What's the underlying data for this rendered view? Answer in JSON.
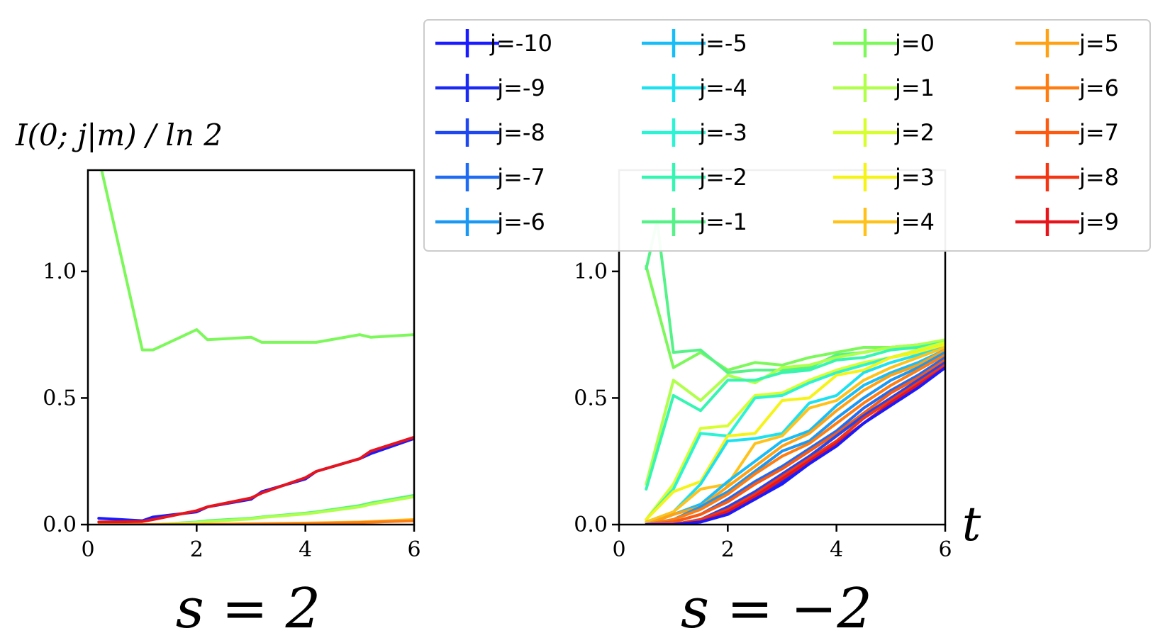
{
  "chart_data": [
    {
      "type": "line",
      "title": "s = 2",
      "ylabel": "I(0; j|m) / ln 2",
      "xlabel": "",
      "xlim": [
        0,
        6
      ],
      "ylim": [
        0,
        1.4
      ],
      "xticks": [
        "0",
        "2",
        "4",
        "6"
      ],
      "yticks": [
        "0.0",
        "0.5",
        "1.0"
      ],
      "series": [
        {
          "name": "j=0",
          "color": "#7cf85a",
          "x": [
            0.2,
            1.0,
            1.2,
            2.0,
            2.2,
            3.0,
            3.2,
            4.0,
            4.2,
            5.0,
            5.2,
            6.0
          ],
          "y": [
            1.45,
            0.69,
            0.69,
            0.77,
            0.73,
            0.74,
            0.72,
            0.72,
            0.72,
            0.75,
            0.74,
            0.75
          ]
        },
        {
          "name": "j=-1",
          "color": "#55f287",
          "x": [
            0.2,
            1.0,
            1.2,
            2.0,
            2.2,
            3.0,
            3.2,
            4.0,
            4.2,
            5.0,
            5.2,
            6.0
          ],
          "y": [
            0.0,
            0.0,
            0.0,
            0.01,
            0.015,
            0.025,
            0.03,
            0.045,
            0.05,
            0.075,
            0.085,
            0.115
          ]
        },
        {
          "name": "j=1",
          "color": "#b0ff4a",
          "x": [
            0.2,
            1.0,
            1.2,
            2.0,
            2.2,
            3.0,
            3.2,
            4.0,
            4.2,
            5.0,
            5.2,
            6.0
          ],
          "y": [
            0.0,
            0.0,
            0.0,
            0.008,
            0.012,
            0.022,
            0.028,
            0.042,
            0.047,
            0.07,
            0.08,
            0.11
          ]
        },
        {
          "name": "j=-10",
          "color": "#1a1aff",
          "x": [
            0.2,
            1.0,
            1.2,
            2.0,
            2.2,
            3.0,
            3.2,
            4.0,
            4.2,
            5.0,
            5.2,
            6.0
          ],
          "y": [
            0.025,
            0.015,
            0.03,
            0.05,
            0.07,
            0.1,
            0.13,
            0.18,
            0.21,
            0.26,
            0.28,
            0.34
          ]
        },
        {
          "name": "j=9",
          "color": "#e8141b",
          "x": [
            0.2,
            1.0,
            1.2,
            2.0,
            2.2,
            3.0,
            3.2,
            4.0,
            4.2,
            5.0,
            5.2,
            6.0
          ],
          "y": [
            0.01,
            0.012,
            0.02,
            0.055,
            0.07,
            0.105,
            0.125,
            0.185,
            0.21,
            0.26,
            0.29,
            0.345
          ]
        },
        {
          "name": "j=4",
          "color": "#ffc21a",
          "x": [
            0.2,
            1.0,
            2.0,
            3.0,
            4.0,
            5.0,
            6.0
          ],
          "y": [
            0.0,
            0.0,
            0.0,
            0.003,
            0.006,
            0.01,
            0.02
          ]
        },
        {
          "name": "j=6",
          "color": "#ff7c10",
          "x": [
            0.2,
            1.0,
            2.0,
            3.0,
            4.0,
            5.0,
            6.0
          ],
          "y": [
            0.0,
            0.0,
            0.0,
            0.002,
            0.004,
            0.008,
            0.015
          ]
        }
      ]
    },
    {
      "type": "line",
      "title": "s = −2",
      "xlabel": "t",
      "ylabel": "",
      "xlim": [
        0,
        6
      ],
      "ylim": [
        0,
        1.4
      ],
      "xticks": [
        "0",
        "2",
        "4",
        "6"
      ],
      "yticks": [
        "0.0",
        "0.5",
        "1.0"
      ],
      "series": [
        {
          "name": "j=0",
          "color": "#7cf85a",
          "x": [
            0.5,
            1.0,
            1.5,
            2.0,
            2.5,
            3.0,
            3.5,
            4.0,
            4.5,
            5.0,
            5.5,
            6.0
          ],
          "y": [
            1.02,
            0.62,
            0.68,
            0.61,
            0.64,
            0.63,
            0.66,
            0.68,
            0.7,
            0.7,
            0.71,
            0.72
          ]
        },
        {
          "name": "j=-1",
          "color": "#55f287",
          "x": [
            0.5,
            0.7,
            1.0,
            1.5,
            2.0,
            2.5,
            3.0,
            3.5,
            4.0,
            4.5,
            5.0,
            5.5,
            6.0
          ],
          "y": [
            1.01,
            1.2,
            0.68,
            0.69,
            0.6,
            0.61,
            0.61,
            0.62,
            0.67,
            0.68,
            0.7,
            0.71,
            0.72
          ]
        },
        {
          "name": "j=1",
          "color": "#b0ff4a",
          "x": [
            0.5,
            1.0,
            1.5,
            2.0,
            2.5,
            3.0,
            3.5,
            4.0,
            4.5,
            5.0,
            5.5,
            6.0
          ],
          "y": [
            0.16,
            0.57,
            0.49,
            0.59,
            0.56,
            0.62,
            0.63,
            0.66,
            0.68,
            0.7,
            0.71,
            0.73
          ]
        },
        {
          "name": "j=-2",
          "color": "#35f5b2",
          "x": [
            0.5,
            1.0,
            1.5,
            2.0,
            2.5,
            3.0,
            3.5,
            4.0,
            4.5,
            5.0,
            5.5,
            6.0
          ],
          "y": [
            0.14,
            0.51,
            0.45,
            0.57,
            0.57,
            0.6,
            0.61,
            0.65,
            0.66,
            0.69,
            0.7,
            0.72
          ]
        },
        {
          "name": "j=2",
          "color": "#d7ff2e",
          "x": [
            0.5,
            1.0,
            1.5,
            2.0,
            2.5,
            3.0,
            3.5,
            4.0,
            4.5,
            5.0,
            5.5,
            6.0
          ],
          "y": [
            0.02,
            0.16,
            0.38,
            0.39,
            0.51,
            0.52,
            0.57,
            0.61,
            0.64,
            0.66,
            0.69,
            0.72
          ]
        },
        {
          "name": "j=-3",
          "color": "#2cf3d4",
          "x": [
            0.5,
            1.0,
            1.5,
            2.0,
            2.5,
            3.0,
            3.5,
            4.0,
            4.5,
            5.0,
            5.5,
            6.0
          ],
          "y": [
            0.02,
            0.14,
            0.36,
            0.35,
            0.5,
            0.51,
            0.56,
            0.6,
            0.63,
            0.66,
            0.68,
            0.71
          ]
        },
        {
          "name": "j=3",
          "color": "#f6f316",
          "x": [
            0.5,
            1.0,
            1.5,
            2.0,
            2.5,
            3.0,
            3.5,
            4.0,
            4.5,
            5.0,
            5.5,
            6.0
          ],
          "y": [
            0.02,
            0.13,
            0.17,
            0.35,
            0.36,
            0.49,
            0.5,
            0.59,
            0.61,
            0.66,
            0.68,
            0.71
          ]
        },
        {
          "name": "j=-4",
          "color": "#1ee1f0",
          "x": [
            0.5,
            1.0,
            1.5,
            2.0,
            2.5,
            3.0,
            3.5,
            4.0,
            4.5,
            5.0,
            5.5,
            6.0
          ],
          "y": [
            0.01,
            0.05,
            0.16,
            0.33,
            0.34,
            0.36,
            0.48,
            0.51,
            0.6,
            0.64,
            0.67,
            0.7
          ]
        },
        {
          "name": "j=4",
          "color": "#ffc21a",
          "x": [
            0.5,
            1.0,
            1.5,
            2.0,
            2.5,
            3.0,
            3.5,
            4.0,
            4.5,
            5.0,
            5.5,
            6.0
          ],
          "y": [
            0.01,
            0.05,
            0.14,
            0.16,
            0.32,
            0.35,
            0.46,
            0.49,
            0.57,
            0.62,
            0.66,
            0.7
          ]
        },
        {
          "name": "j=-5",
          "color": "#18bdf7",
          "x": [
            0.5,
            1.0,
            1.5,
            2.0,
            2.5,
            3.0,
            3.5,
            4.0,
            4.5,
            5.0,
            5.5,
            6.0
          ],
          "y": [
            0.0,
            0.04,
            0.08,
            0.17,
            0.25,
            0.33,
            0.37,
            0.47,
            0.55,
            0.6,
            0.64,
            0.69
          ]
        },
        {
          "name": "j=5",
          "color": "#ffa114",
          "x": [
            0.5,
            1.0,
            1.5,
            2.0,
            2.5,
            3.0,
            3.5,
            4.0,
            4.5,
            5.0,
            5.5,
            6.0
          ],
          "y": [
            0.0,
            0.04,
            0.07,
            0.15,
            0.23,
            0.31,
            0.36,
            0.45,
            0.53,
            0.59,
            0.63,
            0.69
          ]
        },
        {
          "name": "j=-6",
          "color": "#1a98f4",
          "x": [
            0.5,
            1.0,
            1.5,
            2.0,
            2.5,
            3.0,
            3.5,
            4.0,
            4.5,
            5.0,
            5.5,
            6.0
          ],
          "y": [
            0.0,
            0.02,
            0.07,
            0.13,
            0.21,
            0.29,
            0.33,
            0.42,
            0.5,
            0.57,
            0.62,
            0.68
          ]
        },
        {
          "name": "j=6",
          "color": "#ff7c10",
          "x": [
            0.5,
            1.0,
            1.5,
            2.0,
            2.5,
            3.0,
            3.5,
            4.0,
            4.5,
            5.0,
            5.5,
            6.0
          ],
          "y": [
            0.0,
            0.02,
            0.06,
            0.12,
            0.2,
            0.27,
            0.32,
            0.4,
            0.48,
            0.55,
            0.61,
            0.67
          ]
        },
        {
          "name": "j=-7",
          "color": "#1f6cf2",
          "x": [
            0.5,
            1.0,
            1.5,
            2.0,
            2.5,
            3.0,
            3.5,
            4.0,
            4.5,
            5.0,
            5.5,
            6.0
          ],
          "y": [
            0.0,
            0.01,
            0.04,
            0.1,
            0.17,
            0.23,
            0.3,
            0.37,
            0.46,
            0.53,
            0.59,
            0.66
          ]
        },
        {
          "name": "j=7",
          "color": "#fb5a10",
          "x": [
            0.5,
            1.0,
            1.5,
            2.0,
            2.5,
            3.0,
            3.5,
            4.0,
            4.5,
            5.0,
            5.5,
            6.0
          ],
          "y": [
            0.0,
            0.01,
            0.04,
            0.09,
            0.16,
            0.22,
            0.29,
            0.36,
            0.44,
            0.52,
            0.58,
            0.65
          ]
        },
        {
          "name": "j=-8",
          "color": "#1f47f0",
          "x": [
            0.5,
            1.0,
            1.5,
            2.0,
            2.5,
            3.0,
            3.5,
            4.0,
            4.5,
            5.0,
            5.5,
            6.0
          ],
          "y": [
            0.0,
            0.0,
            0.02,
            0.07,
            0.13,
            0.2,
            0.27,
            0.35,
            0.43,
            0.5,
            0.57,
            0.64
          ]
        },
        {
          "name": "j=8",
          "color": "#f33514",
          "x": [
            0.5,
            1.0,
            1.5,
            2.0,
            2.5,
            3.0,
            3.5,
            4.0,
            4.5,
            5.0,
            5.5,
            6.0
          ],
          "y": [
            0.0,
            0.0,
            0.02,
            0.06,
            0.12,
            0.19,
            0.26,
            0.33,
            0.42,
            0.49,
            0.56,
            0.63
          ]
        },
        {
          "name": "j=-9",
          "color": "#1a2af2",
          "x": [
            0.5,
            1.0,
            1.5,
            2.0,
            2.5,
            3.0,
            3.5,
            4.0,
            4.5,
            5.0,
            5.5,
            6.0
          ],
          "y": [
            0.0,
            0.0,
            0.01,
            0.05,
            0.1,
            0.17,
            0.24,
            0.32,
            0.4,
            0.48,
            0.55,
            0.62
          ]
        },
        {
          "name": "j=9",
          "color": "#e8141b",
          "x": [
            0.5,
            1.0,
            1.5,
            2.0,
            2.5,
            3.0,
            3.5,
            4.0,
            4.5,
            5.0,
            5.5,
            6.0
          ],
          "y": [
            0.0,
            0.0,
            0.01,
            0.05,
            0.11,
            0.18,
            0.25,
            0.32,
            0.4,
            0.48,
            0.55,
            0.62
          ]
        },
        {
          "name": "j=-10",
          "color": "#1a1aff",
          "x": [
            0.5,
            1.0,
            1.5,
            2.0,
            2.5,
            3.0,
            3.5,
            4.0,
            4.5,
            5.0,
            5.5,
            6.0
          ],
          "y": [
            0.0,
            0.0,
            0.01,
            0.04,
            0.1,
            0.16,
            0.24,
            0.31,
            0.4,
            0.47,
            0.54,
            0.62
          ]
        }
      ]
    }
  ],
  "legend": {
    "placement": "top-right",
    "columns": 4,
    "entries": [
      {
        "label": "j=-10",
        "color": "#1a1aff"
      },
      {
        "label": "j=-9",
        "color": "#1a2af2"
      },
      {
        "label": "j=-8",
        "color": "#1f47f0"
      },
      {
        "label": "j=-7",
        "color": "#1f6cf2"
      },
      {
        "label": "j=-6",
        "color": "#1a98f4"
      },
      {
        "label": "j=-5",
        "color": "#18bdf7"
      },
      {
        "label": "j=-4",
        "color": "#1ee1f0"
      },
      {
        "label": "j=-3",
        "color": "#2cf3d4"
      },
      {
        "label": "j=-2",
        "color": "#35f5b2"
      },
      {
        "label": "j=-1",
        "color": "#55f287"
      },
      {
        "label": "j=0",
        "color": "#7cf85a"
      },
      {
        "label": "j=1",
        "color": "#b0ff4a"
      },
      {
        "label": "j=2",
        "color": "#d7ff2e"
      },
      {
        "label": "j=3",
        "color": "#f6f316"
      },
      {
        "label": "j=4",
        "color": "#ffc21a"
      },
      {
        "label": "j=5",
        "color": "#ffa114"
      },
      {
        "label": "j=6",
        "color": "#ff7c10"
      },
      {
        "label": "j=7",
        "color": "#fb5a10"
      },
      {
        "label": "j=8",
        "color": "#f33514"
      },
      {
        "label": "j=9",
        "color": "#e8141b"
      }
    ]
  }
}
